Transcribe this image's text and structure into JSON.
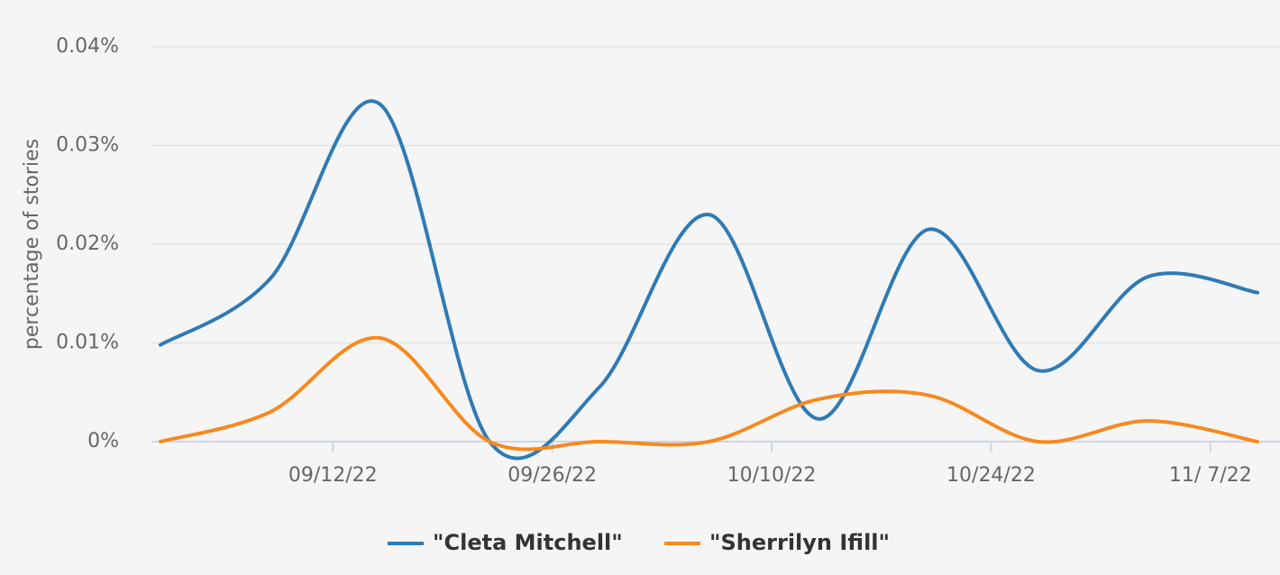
{
  "chart_data": {
    "type": "line",
    "y_label": "percentage of stories",
    "x": [
      "2022-09-01",
      "2022-09-08",
      "2022-09-15",
      "2022-09-22",
      "2022-09-29",
      "2022-10-06",
      "2022-10-13",
      "2022-10-20",
      "2022-10-27",
      "2022-11-03",
      "2022-11-10"
    ],
    "series": [
      {
        "name": "\"Cleta Mitchell\"",
        "color": "#2f7ab5",
        "values": [
          0.0098,
          0.0165,
          0.0342,
          0,
          0.0055,
          0.023,
          0.0023,
          0.0215,
          0.0072,
          0.0167,
          0.0151
        ]
      },
      {
        "name": "\"Sherrilyn Ifill\"",
        "color": "#f7891f",
        "values": [
          0,
          0.003,
          0.0105,
          0,
          0,
          0,
          0.0043,
          0.0047,
          0,
          0.0021,
          0
        ]
      }
    ],
    "xlim": [
      "2022-09-01",
      "2022-11-10"
    ],
    "xticks": [
      {
        "value": "2022-09-12",
        "label": "09/12/22"
      },
      {
        "value": "2022-09-26",
        "label": "09/26/22"
      },
      {
        "value": "2022-10-10",
        "label": "10/10/22"
      },
      {
        "value": "2022-10-24",
        "label": "10/24/22"
      },
      {
        "value": "2022-11-07",
        "label": "11/ 7/22"
      }
    ],
    "ylim": [
      0,
      0.04
    ],
    "yticks": [
      {
        "value": 0,
        "label": "0%"
      },
      {
        "value": 0.01,
        "label": "0.01%"
      },
      {
        "value": 0.02,
        "label": "0.02%"
      },
      {
        "value": 0.03,
        "label": "0.03%"
      },
      {
        "value": 0.04,
        "label": "0.04%"
      }
    ],
    "grid": true
  }
}
